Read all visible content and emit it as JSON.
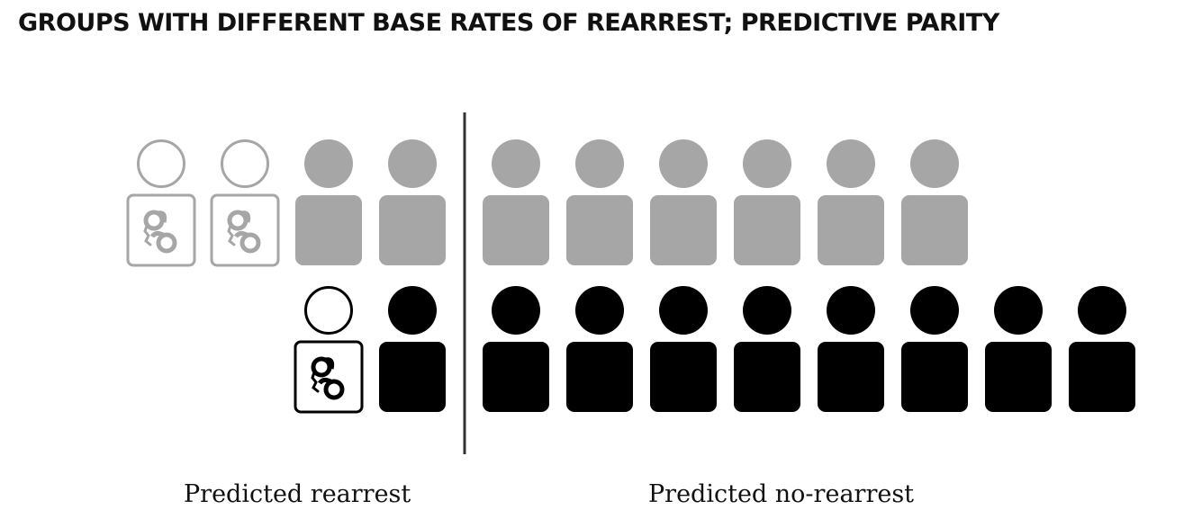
{
  "title": "GROUPS WITH DIFFERENT BASE RATES OF REARREST; PREDICTIVE PARITY",
  "labels": {
    "predicted_rearrest": "Predicted rearrest",
    "predicted_no_rearrest": "Predicted no-rearrest"
  },
  "colors": {
    "group_gray": "#a6a6a6",
    "group_black": "#000000",
    "divider": "#333333"
  },
  "groups": [
    {
      "color": "gray",
      "predicted_rearrest": [
        "rearrested",
        "rearrested",
        "not-rearrested",
        "not-rearrested"
      ],
      "predicted_no_rearrest": [
        "not-rearrested",
        "not-rearrested",
        "not-rearrested",
        "not-rearrested",
        "not-rearrested",
        "not-rearrested"
      ]
    },
    {
      "color": "black",
      "predicted_rearrest": [
        "rearrested",
        "not-rearrested"
      ],
      "predicted_no_rearrest": [
        "not-rearrested",
        "not-rearrested",
        "not-rearrested",
        "not-rearrested",
        "not-rearrested",
        "not-rearrested",
        "not-rearrested",
        "not-rearrested"
      ]
    }
  ],
  "icons": {
    "rearrested": "handcuffs-icon",
    "not_rearrested": "person-icon"
  }
}
